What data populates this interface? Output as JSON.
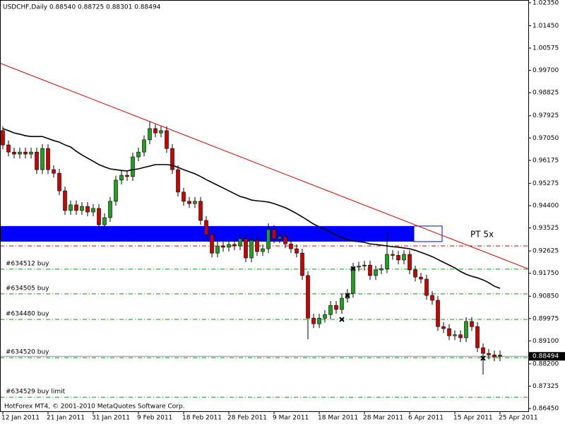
{
  "chart_data": {
    "type": "candlestick",
    "title": "USDCHF,Daily  0.88540 0.88725 0.88301 0.88494",
    "footer": "HotForex MT4, © 2001-2010 MetaQuotes Software Corp.",
    "categories": [
      "12 Jan 2011",
      null,
      null,
      null,
      null,
      null,
      null,
      null,
      "21 Jan 2011",
      null,
      null,
      null,
      null,
      null,
      null,
      null,
      "31 Jan 2011",
      null,
      null,
      null,
      null,
      null,
      null,
      null,
      "9 Feb 2011",
      null,
      null,
      null,
      null,
      null,
      null,
      null,
      "18 Feb 2011",
      null,
      null,
      null,
      null,
      null,
      null,
      null,
      "28 Feb 2011",
      null,
      null,
      null,
      null,
      null,
      null,
      null,
      "9 Mar 2011",
      null,
      null,
      null,
      null,
      null,
      null,
      null,
      "18 Mar 2011",
      null,
      null,
      null,
      null,
      null,
      null,
      null,
      "28 Mar 2011",
      null,
      null,
      null,
      null,
      null,
      null,
      null,
      "6 Apr 2011",
      null,
      null,
      null,
      null,
      null,
      null,
      null,
      "15 Apr 2011",
      null,
      null,
      null,
      null,
      null,
      null,
      null,
      "25 Apr 2011"
    ],
    "open": [
      0.9734,
      0.9678,
      0.965,
      0.9642,
      0.965,
      0.9642,
      0.965,
      0.9581,
      0.9664,
      0.9581,
      0.9567,
      0.9498,
      0.9421,
      0.9443,
      0.9421,
      0.9437,
      0.9415,
      0.9429,
      0.9365,
      0.9393,
      0.9457,
      0.954,
      0.9559,
      0.9554,
      0.9631,
      0.965,
      0.9698,
      0.9742,
      0.9725,
      0.9734,
      0.9664,
      0.9581,
      0.9493,
      0.9457,
      0.9448,
      0.9457,
      0.9382,
      0.9326,
      0.9254,
      0.9282,
      0.9277,
      0.9288,
      0.9282,
      0.931,
      0.9235,
      0.9304,
      0.926,
      0.9271,
      0.9346,
      0.931,
      0.9318,
      0.929,
      0.9271,
      0.9254,
      0.9166,
      0.8999,
      0.8977,
      0.8999,
      0.9013,
      0.9049,
      0.9033,
      0.9077,
      0.9096,
      0.9199,
      0.9203,
      0.9207,
      0.9166,
      0.9188,
      0.9193,
      0.9249,
      0.9245,
      0.9227,
      0.9249,
      0.9188,
      0.916,
      0.9152,
      0.9088,
      0.9069,
      0.8966,
      0.8958,
      0.893,
      0.8934,
      0.8922,
      0.8986,
      0.8966,
      0.8883,
      0.8861,
      0.8855,
      0.8854
    ],
    "high": [
      0.9751,
      0.9695,
      0.9667,
      0.9667,
      0.9667,
      0.9667,
      0.9667,
      0.9681,
      0.9681,
      0.9598,
      0.9584,
      0.9515,
      0.946,
      0.946,
      0.9454,
      0.9454,
      0.9446,
      0.9446,
      0.941,
      0.9474,
      0.9557,
      0.9576,
      0.9576,
      0.9648,
      0.9667,
      0.9715,
      0.977,
      0.9759,
      0.9751,
      0.9751,
      0.9681,
      0.9598,
      0.951,
      0.9474,
      0.9474,
      0.9474,
      0.9399,
      0.9343,
      0.9299,
      0.9299,
      0.9305,
      0.9305,
      0.9327,
      0.9327,
      0.9321,
      0.9321,
      0.9288,
      0.937,
      0.9363,
      0.9335,
      0.9335,
      0.9307,
      0.9288,
      0.9271,
      0.9183,
      0.9016,
      0.9016,
      0.903,
      0.9066,
      0.9066,
      0.9094,
      0.9113,
      0.9216,
      0.922,
      0.9224,
      0.9224,
      0.9205,
      0.921,
      0.9337,
      0.9266,
      0.9262,
      0.9266,
      0.9266,
      0.9205,
      0.9177,
      0.9169,
      0.9105,
      0.9086,
      0.8983,
      0.8975,
      0.8951,
      0.8951,
      0.9003,
      0.9003,
      0.8983,
      0.89,
      0.8878,
      0.8872,
      0.88725
    ],
    "low": [
      0.9661,
      0.9633,
      0.9625,
      0.9625,
      0.9625,
      0.9625,
      0.9564,
      0.9564,
      0.9564,
      0.955,
      0.9481,
      0.9404,
      0.9404,
      0.9404,
      0.9404,
      0.9398,
      0.9398,
      0.9348,
      0.9348,
      0.9376,
      0.944,
      0.9523,
      0.9537,
      0.9537,
      0.9614,
      0.9633,
      0.9681,
      0.9708,
      0.9708,
      0.9647,
      0.9564,
      0.9476,
      0.944,
      0.9431,
      0.9431,
      0.9365,
      0.9309,
      0.9237,
      0.9237,
      0.926,
      0.926,
      0.9265,
      0.9265,
      0.9218,
      0.9218,
      0.9243,
      0.9243,
      0.9254,
      0.9293,
      0.9293,
      0.9273,
      0.9254,
      0.9237,
      0.9149,
      0.8916,
      0.896,
      0.896,
      0.8982,
      0.8996,
      0.9016,
      0.9016,
      0.906,
      0.9079,
      0.9182,
      0.9186,
      0.9149,
      0.9149,
      0.9171,
      0.9176,
      0.9228,
      0.921,
      0.921,
      0.9171,
      0.9143,
      0.9135,
      0.9071,
      0.9052,
      0.8949,
      0.8941,
      0.8913,
      0.8913,
      0.8905,
      0.8905,
      0.8949,
      0.8866,
      0.8778,
      0.8838,
      0.883,
      0.88301
    ],
    "close": [
      0.9678,
      0.965,
      0.9642,
      0.965,
      0.9642,
      0.965,
      0.9581,
      0.9664,
      0.9581,
      0.9567,
      0.9498,
      0.9421,
      0.9443,
      0.9421,
      0.9437,
      0.9415,
      0.9429,
      0.9365,
      0.9393,
      0.9457,
      0.954,
      0.9559,
      0.9554,
      0.9631,
      0.965,
      0.9698,
      0.9742,
      0.9725,
      0.9734,
      0.9664,
      0.9581,
      0.9493,
      0.9457,
      0.9448,
      0.9457,
      0.9382,
      0.9326,
      0.9254,
      0.9282,
      0.9277,
      0.9288,
      0.9282,
      0.931,
      0.9235,
      0.9304,
      0.926,
      0.9271,
      0.9346,
      0.931,
      0.9318,
      0.929,
      0.9271,
      0.9254,
      0.9166,
      0.8999,
      0.8977,
      0.8999,
      0.9013,
      0.9049,
      0.9033,
      0.9077,
      0.9096,
      0.9199,
      0.9203,
      0.9207,
      0.9166,
      0.9188,
      0.9193,
      0.9249,
      0.9245,
      0.9227,
      0.9249,
      0.9188,
      0.916,
      0.9152,
      0.9088,
      0.9069,
      0.8966,
      0.8958,
      0.893,
      0.8934,
      0.8922,
      0.8986,
      0.8966,
      0.8883,
      0.8861,
      0.8855,
      0.8847,
      0.88494
    ],
    "up_color": "#1fa01f",
    "down_color": "#d00000",
    "moving_average": {
      "color": "#000000",
      "values": [
        0.9742,
        0.9734,
        0.9725,
        0.972,
        0.9714,
        0.9711,
        0.9711,
        0.9711,
        0.9703,
        0.9695,
        0.9689,
        0.9678,
        0.967,
        0.9653,
        0.9639,
        0.9626,
        0.9614,
        0.9601,
        0.9592,
        0.9584,
        0.9581,
        0.9578,
        0.9576,
        0.9581,
        0.9584,
        0.959,
        0.9595,
        0.9601,
        0.9601,
        0.9601,
        0.9598,
        0.959,
        0.9581,
        0.9573,
        0.9565,
        0.9554,
        0.9542,
        0.9531,
        0.952,
        0.9509,
        0.9498,
        0.9487,
        0.9476,
        0.947,
        0.9462,
        0.9459,
        0.9457,
        0.9454,
        0.9448,
        0.944,
        0.9432,
        0.9421,
        0.9409,
        0.9396,
        0.9382,
        0.9368,
        0.9357,
        0.9346,
        0.9335,
        0.9324,
        0.9315,
        0.9307,
        0.9301,
        0.9299,
        0.9296,
        0.929,
        0.9288,
        0.9285,
        0.9282,
        0.9279,
        0.9277,
        0.9274,
        0.9271,
        0.9265,
        0.9257,
        0.9249,
        0.924,
        0.9229,
        0.9218,
        0.9207,
        0.9196,
        0.9182,
        0.9171,
        0.9163,
        0.9157,
        0.9149,
        0.9138,
        0.9124,
        0.9116
      ]
    },
    "trendline": {
      "color": "#e00000",
      "from": {
        "bar": 0,
        "price": 0.9994
      },
      "to": {
        "bar": 88,
        "price": 0.9235
      }
    },
    "zone": {
      "color": "#0000ff",
      "top": 0.936,
      "bottom": 0.9299,
      "end_bar": 72.75,
      "outline_end_bar": 77.75
    },
    "target_line": {
      "color": "#e00000",
      "price": 0.9282
    },
    "target_label": "PT 5x",
    "levels": [
      {
        "label": "#634512 buy",
        "price": 0.9191
      },
      {
        "label": "#634505 buy",
        "price": 0.9094
      },
      {
        "label": "#634480 buy",
        "price": 0.8994
      },
      {
        "label": "#634520 buy",
        "price": 0.8844
      },
      {
        "label": "#634529 buy limit",
        "price": 0.8689
      }
    ],
    "level_color": "#00a000",
    "markers": [
      {
        "bar": 62,
        "price": 0.9193
      },
      {
        "bar": 61,
        "price": 0.9088
      },
      {
        "bar": 60,
        "price": 0.8994
      },
      {
        "bar": 85,
        "price": 0.8842
      }
    ],
    "last_price_label": "0.88494",
    "ylim": [
      0.8634,
      1.0246
    ],
    "yticks": [
      {
        "value": 1.0235,
        "label": "1.02350"
      },
      {
        "value": 1.0145,
        "label": "1.01450"
      },
      {
        "value": 1.00575,
        "label": "1.00575"
      },
      {
        "value": 0.997,
        "label": "0.99700"
      },
      {
        "value": 0.98825,
        "label": "0.98825"
      },
      {
        "value": 0.97925,
        "label": "0.97925"
      },
      {
        "value": 0.9705,
        "label": "0.97050"
      },
      {
        "value": 0.96175,
        "label": "0.96175"
      },
      {
        "value": 0.95275,
        "label": "0.95275"
      },
      {
        "value": 0.944,
        "label": "0.94400"
      },
      {
        "value": 0.93525,
        "label": "0.93525"
      },
      {
        "value": 0.92625,
        "label": "0.92625"
      },
      {
        "value": 0.9175,
        "label": "0.91750"
      },
      {
        "value": 0.9085,
        "label": "0.90850"
      },
      {
        "value": 0.89975,
        "label": "0.89975"
      },
      {
        "value": 0.891,
        "label": "0.89100"
      },
      {
        "value": 0.882,
        "label": "0.88200"
      },
      {
        "value": 0.87325,
        "label": "0.87325"
      },
      {
        "value": 0.8645,
        "label": "0.86450"
      }
    ]
  }
}
